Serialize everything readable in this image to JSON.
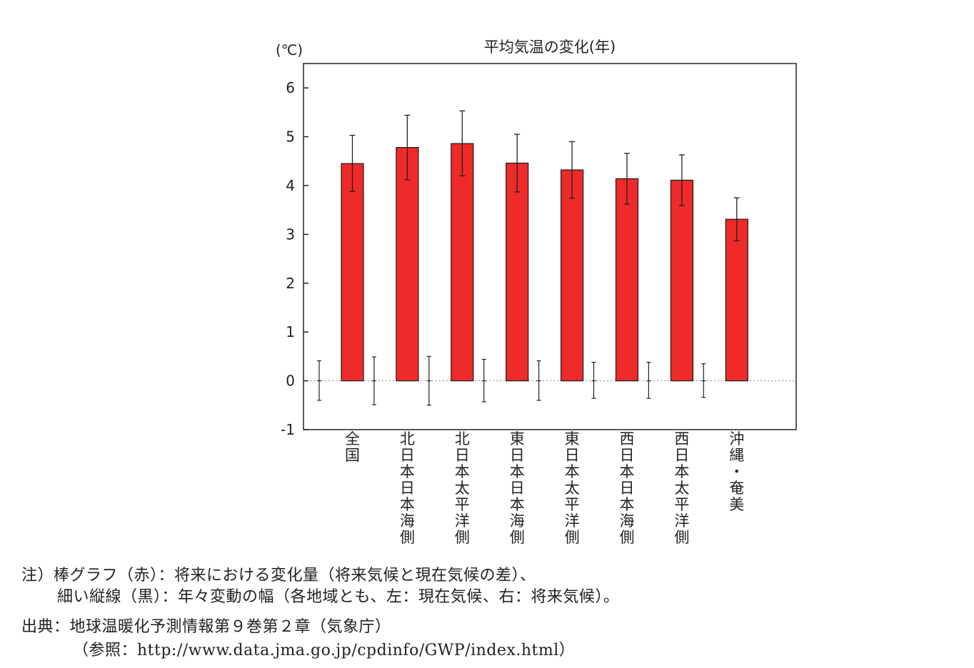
{
  "chart_data": {
    "type": "bar",
    "title": "平均気温の変化(年)",
    "unit_label": "(℃)",
    "ylim": [
      -1,
      6.5
    ],
    "yticks": [
      -1,
      0,
      1,
      2,
      3,
      4,
      5,
      6
    ],
    "categories": [
      "全国",
      "北日本日本海側",
      "北日本太平洋側",
      "東日本日本海側",
      "東日本太平洋側",
      "西日本日本海側",
      "西日本太平洋側",
      "沖縄・奄美"
    ],
    "series": [
      {
        "values": [
          4.45,
          4.78,
          4.86,
          4.46,
          4.32,
          4.14,
          4.11,
          3.31
        ],
        "error_low": [
          3.88,
          4.12,
          4.2,
          3.87,
          3.74,
          3.62,
          3.59,
          2.87
        ],
        "error_high": [
          5.03,
          5.44,
          5.53,
          5.05,
          4.9,
          4.66,
          4.63,
          3.75
        ],
        "color": "#ee2a2a"
      },
      {
        "values": [
          0,
          0,
          0,
          0,
          0,
          0,
          0,
          0
        ],
        "error_low": [
          -0.4,
          -0.49,
          -0.5,
          -0.43,
          -0.4,
          -0.36,
          -0.36,
          -0.34
        ],
        "error_high": [
          0.41,
          0.49,
          0.5,
          0.44,
          0.41,
          0.38,
          0.38,
          0.35
        ],
        "color": "#222222"
      }
    ],
    "zero_line": "dotted",
    "grid": false,
    "legend": "none"
  },
  "notes": {
    "line1": "注）棒グラフ（赤）：将来における変化量（将来気候と現在気候の差）、",
    "line2": "細い縦線（黒）：年々変動の幅（各地域とも、左：現在気候、右：将来気候）。",
    "source1": "出典：地球温暖化予測情報第９巻第２章（気象庁）",
    "source2": "（参照：http://www.data.jma.go.jp/cpdinfo/GWP/index.html）"
  }
}
